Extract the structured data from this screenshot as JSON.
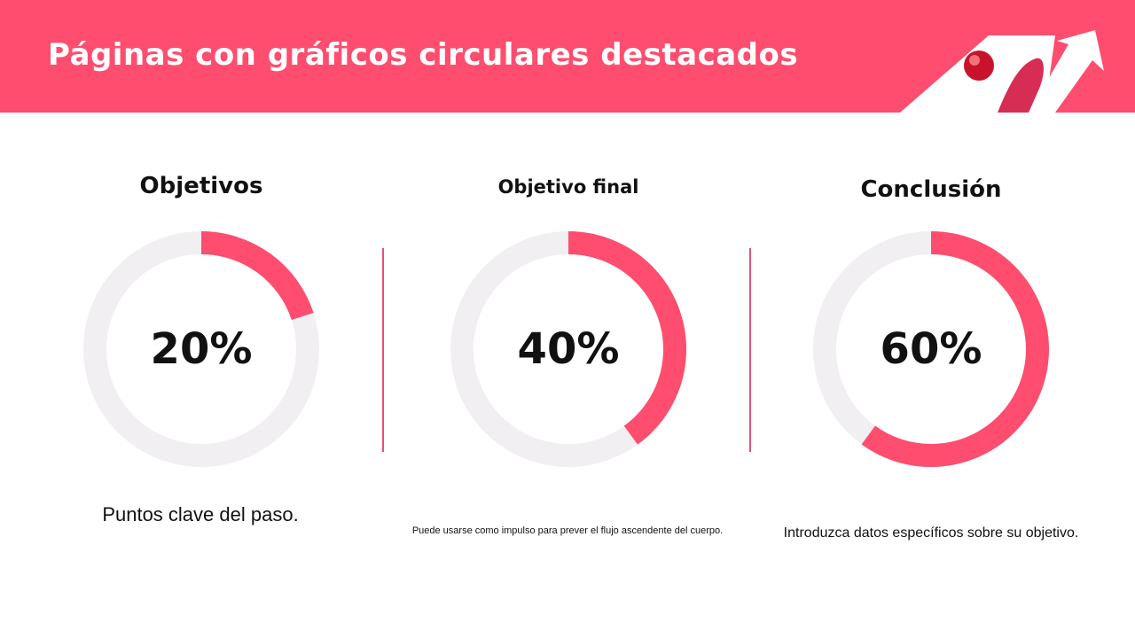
{
  "header": {
    "title": "Páginas con gráficos circulares destacados",
    "decoration": "arrow-ball-icon"
  },
  "colors": {
    "accent": "#fe4d6e",
    "track": "#f1eff2",
    "divider": "#e0527a",
    "text": "#111111"
  },
  "columns": [
    {
      "title": "Objetivos",
      "percent_label": "20%",
      "percent": 20,
      "description": "Puntos clave del paso."
    },
    {
      "title": "Objetivo final",
      "percent_label": "40%",
      "percent": 40,
      "description": "Puede usarse como impulso para prever el flujo ascendente del cuerpo."
    },
    {
      "title": "Conclusión",
      "percent_label": "60%",
      "percent": 60,
      "description": "Introduzca datos específicos sobre su objetivo."
    }
  ]
}
